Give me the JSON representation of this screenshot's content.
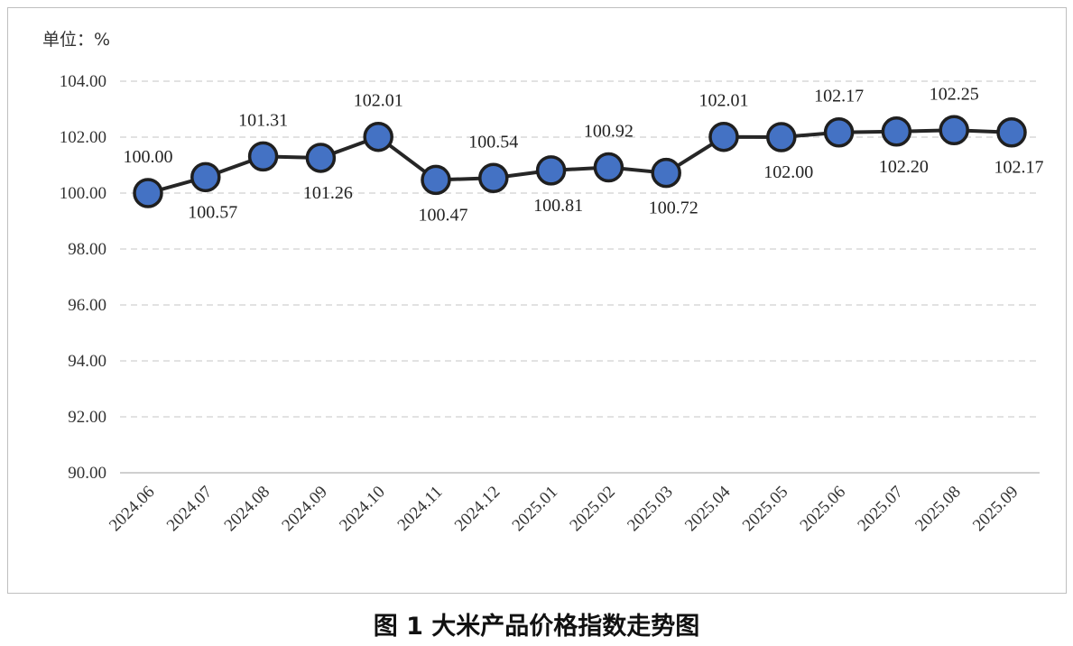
{
  "unit_label": "单位：%",
  "caption": "图 1  大米产品价格指数走势图",
  "colors": {
    "line": "#262626",
    "marker_fill": "#4472c4",
    "marker_stroke": "#1f1f1f",
    "grid": "#d9d9d9",
    "axis": "#bfbfbf",
    "frame": "#bfbfbf"
  },
  "chart_data": {
    "type": "line",
    "title": "",
    "xlabel": "",
    "ylabel": "",
    "categories": [
      "2024.06",
      "2024.07",
      "2024.08",
      "2024.09",
      "2024.10",
      "2024.11",
      "2024.12",
      "2025.01",
      "2025.02",
      "2025.03",
      "2025.04",
      "2025.05",
      "2025.06",
      "2025.07",
      "2025.08",
      "2025.09"
    ],
    "values": [
      100.0,
      100.57,
      101.31,
      101.26,
      102.01,
      100.47,
      100.54,
      100.81,
      100.92,
      100.72,
      102.01,
      102.0,
      102.17,
      102.2,
      102.25,
      102.17
    ],
    "value_labels": [
      "100.00",
      "100.57",
      "101.31",
      "101.26",
      "102.01",
      "100.47",
      "100.54",
      "100.81",
      "100.92",
      "100.72",
      "102.01",
      "102.00",
      "102.17",
      "102.20",
      "102.25",
      "102.17"
    ],
    "label_positions": [
      "above",
      "below",
      "above",
      "below",
      "above",
      "below",
      "above",
      "below",
      "above",
      "below",
      "above",
      "below",
      "above",
      "below",
      "above",
      "below"
    ],
    "y_ticks": [
      "90.00",
      "92.00",
      "94.00",
      "96.00",
      "98.00",
      "100.00",
      "102.00",
      "104.00"
    ],
    "ylim": [
      90,
      104
    ],
    "grid": "horizontal dashed",
    "legend": "none",
    "x_tick_rotation": "45 degrees"
  }
}
